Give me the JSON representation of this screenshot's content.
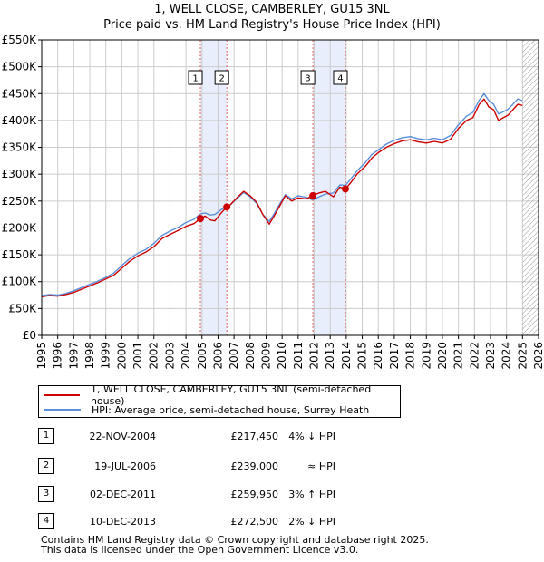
{
  "title": "1, WELL CLOSE, CAMBERLEY, GU15 3NL",
  "subtitle": "Price paid vs. HM Land Registry's House Price Index (HPI)",
  "colors": {
    "property": "#cc0000",
    "hpi": "#5b8fd9",
    "shade": "#e8eefc",
    "grid": "#cccccc",
    "hatch": "#999999"
  },
  "chart_data": {
    "type": "line",
    "title": "1, WELL CLOSE, CAMBERLEY, GU15 3NL",
    "subtitle": "Price paid vs. HM Land Registry's House Price Index (HPI)",
    "xlim": [
      1995,
      2026
    ],
    "ylim": [
      0,
      550000
    ],
    "y_ticks": [
      {
        "value": 0,
        "label": "£0"
      },
      {
        "value": 50000,
        "label": "£50K"
      },
      {
        "value": 100000,
        "label": "£100K"
      },
      {
        "value": 150000,
        "label": "£150K"
      },
      {
        "value": 200000,
        "label": "£200K"
      },
      {
        "value": 250000,
        "label": "£250K"
      },
      {
        "value": 300000,
        "label": "£300K"
      },
      {
        "value": 350000,
        "label": "£350K"
      },
      {
        "value": 400000,
        "label": "£400K"
      },
      {
        "value": 450000,
        "label": "£450K"
      },
      {
        "value": 500000,
        "label": "£500K"
      },
      {
        "value": 550000,
        "label": "£550K"
      }
    ],
    "x_ticks": [
      "1995",
      "1996",
      "1997",
      "1998",
      "1999",
      "2000",
      "2001",
      "2002",
      "2003",
      "2004",
      "2005",
      "2006",
      "2007",
      "2008",
      "2009",
      "2010",
      "2011",
      "2012",
      "2013",
      "2014",
      "2015",
      "2016",
      "2017",
      "2018",
      "2019",
      "2020",
      "2021",
      "2022",
      "2023",
      "2024",
      "2025",
      "2026"
    ],
    "grid": true,
    "forecast_hatch_from": 2025.0,
    "shaded_ranges": [
      [
        2004.9,
        2006.55
      ],
      [
        2011.92,
        2013.95
      ]
    ],
    "series": [
      {
        "name": "1, WELL CLOSE, CAMBERLEY, GU15 3NL (semi-detached house)",
        "color": "#cc0000",
        "x": [
          1995.0,
          1995.5,
          1996.0,
          1996.5,
          1997.0,
          1997.5,
          1998.0,
          1998.5,
          1999.0,
          1999.5,
          2000.0,
          2000.5,
          2001.0,
          2001.5,
          2002.0,
          2002.5,
          2003.0,
          2003.5,
          2004.0,
          2004.5,
          2004.9,
          2005.2,
          2005.5,
          2005.8,
          2006.2,
          2006.55,
          2006.8,
          2007.2,
          2007.6,
          2008.0,
          2008.4,
          2008.8,
          2009.2,
          2009.5,
          2009.8,
          2010.2,
          2010.6,
          2011.0,
          2011.5,
          2011.92,
          2012.3,
          2012.7,
          2013.2,
          2013.6,
          2013.95,
          2014.3,
          2014.7,
          2015.2,
          2015.6,
          2016.0,
          2016.5,
          2017.0,
          2017.5,
          2018.0,
          2018.5,
          2019.0,
          2019.5,
          2020.0,
          2020.5,
          2021.0,
          2021.5,
          2021.9,
          2022.3,
          2022.6,
          2022.9,
          2023.2,
          2023.5,
          2023.8,
          2024.1,
          2024.4,
          2024.7,
          2025.0
        ],
        "values": [
          72000,
          74000,
          73000,
          76000,
          80000,
          86000,
          92000,
          98000,
          105000,
          112000,
          125000,
          138000,
          148000,
          155000,
          165000,
          180000,
          188000,
          195000,
          203000,
          208000,
          217450,
          222000,
          215000,
          213000,
          228000,
          239000,
          244000,
          257000,
          268000,
          260000,
          248000,
          225000,
          207000,
          222000,
          238000,
          260000,
          250000,
          256000,
          254000,
          259950,
          265000,
          268000,
          258000,
          276000,
          272500,
          285000,
          301000,
          315000,
          330000,
          340000,
          350000,
          357000,
          362000,
          364000,
          360000,
          358000,
          361000,
          358000,
          365000,
          385000,
          400000,
          405000,
          430000,
          440000,
          425000,
          420000,
          400000,
          405000,
          410000,
          420000,
          430000,
          428000
        ]
      },
      {
        "name": "HPI: Average price, semi-detached house, Surrey Heath",
        "color": "#5b8fd9",
        "x": [
          1995.0,
          1995.5,
          1996.0,
          1996.5,
          1997.0,
          1997.5,
          1998.0,
          1998.5,
          1999.0,
          1999.5,
          2000.0,
          2000.5,
          2001.0,
          2001.5,
          2002.0,
          2002.5,
          2003.0,
          2003.5,
          2004.0,
          2004.5,
          2004.9,
          2005.2,
          2005.5,
          2005.8,
          2006.2,
          2006.55,
          2006.8,
          2007.2,
          2007.6,
          2008.0,
          2008.4,
          2008.8,
          2009.2,
          2009.5,
          2009.8,
          2010.2,
          2010.6,
          2011.0,
          2011.5,
          2011.92,
          2012.3,
          2012.7,
          2013.2,
          2013.6,
          2013.95,
          2014.3,
          2014.7,
          2015.2,
          2015.6,
          2016.0,
          2016.5,
          2017.0,
          2017.5,
          2018.0,
          2018.5,
          2019.0,
          2019.5,
          2020.0,
          2020.5,
          2021.0,
          2021.5,
          2021.9,
          2022.3,
          2022.6,
          2022.9,
          2023.2,
          2023.5,
          2023.8,
          2024.1,
          2024.4,
          2024.7,
          2025.0
        ],
        "values": [
          74000,
          76000,
          75000,
          78000,
          83000,
          89000,
          95000,
          101000,
          108000,
          116000,
          130000,
          143000,
          153000,
          160000,
          171000,
          186000,
          194000,
          201000,
          210000,
          216000,
          226000,
          228000,
          224000,
          225000,
          234000,
          239000,
          244000,
          255000,
          266000,
          258000,
          246000,
          225000,
          212000,
          226000,
          242000,
          262000,
          254000,
          260000,
          257000,
          252000,
          258000,
          263000,
          265000,
          280000,
          279000,
          292000,
          307000,
          322000,
          337000,
          345000,
          356000,
          363000,
          368000,
          370000,
          366000,
          364000,
          367000,
          364000,
          372000,
          392000,
          408000,
          415000,
          438000,
          450000,
          437000,
          430000,
          412000,
          416000,
          421000,
          430000,
          440000,
          437000
        ]
      }
    ],
    "sales": [
      {
        "id": "1",
        "x": 2004.9,
        "value": 217450
      },
      {
        "id": "2",
        "x": 2006.55,
        "value": 239000
      },
      {
        "id": "3",
        "x": 2011.92,
        "value": 259950
      },
      {
        "id": "4",
        "x": 2013.95,
        "value": 272500
      }
    ]
  },
  "legend": [
    {
      "label": "1, WELL CLOSE, CAMBERLEY, GU15 3NL (semi-detached house)",
      "color": "#cc0000"
    },
    {
      "label": "HPI: Average price, semi-detached house, Surrey Heath",
      "color": "#5b8fd9"
    }
  ],
  "transactions": [
    {
      "id": "1",
      "date": "22-NOV-2004",
      "price": "£217,450",
      "hpi": "4% ↓ HPI"
    },
    {
      "id": "2",
      "date": "19-JUL-2006",
      "price": "£239,000",
      "hpi": "≈ HPI"
    },
    {
      "id": "3",
      "date": "02-DEC-2011",
      "price": "£259,950",
      "hpi": "3% ↑ HPI"
    },
    {
      "id": "4",
      "date": "10-DEC-2013",
      "price": "£272,500",
      "hpi": "2% ↓ HPI"
    }
  ],
  "footer": {
    "line1": "Contains HM Land Registry data © Crown copyright and database right 2025.",
    "line2": "This data is licensed under the Open Government Licence v3.0."
  }
}
